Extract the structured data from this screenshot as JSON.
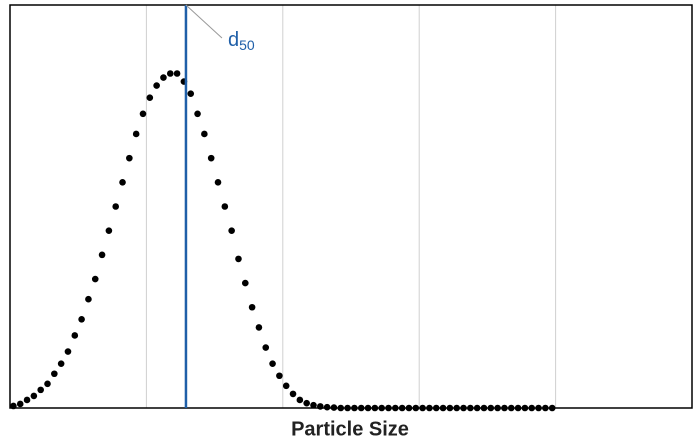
{
  "chart_data": {
    "type": "scatter",
    "x_label": "Particle Size",
    "xlim": [
      0,
      5
    ],
    "ylim": [
      0,
      1
    ],
    "xticks": [
      1,
      2,
      3,
      4
    ],
    "grid": true,
    "color": "#000000",
    "x": [
      0.025,
      0.075,
      0.125,
      0.175,
      0.225,
      0.275,
      0.325,
      0.375,
      0.425,
      0.475,
      0.525,
      0.575,
      0.625,
      0.675,
      0.725,
      0.775,
      0.825,
      0.875,
      0.925,
      0.975,
      1.025,
      1.075,
      1.125,
      1.175,
      1.225,
      1.275,
      1.325,
      1.375,
      1.425,
      1.475,
      1.525,
      1.575,
      1.625,
      1.675,
      1.725,
      1.775,
      1.825,
      1.875,
      1.925,
      1.975,
      2.025,
      2.075,
      2.125,
      2.175,
      2.225,
      2.275,
      2.325,
      2.375,
      2.425,
      2.475,
      2.525,
      2.575,
      2.625,
      2.675,
      2.725,
      2.775,
      2.825,
      2.875,
      2.925,
      2.975,
      3.025,
      3.075,
      3.125,
      3.175,
      3.225,
      3.275,
      3.325,
      3.375,
      3.425,
      3.475,
      3.525,
      3.575,
      3.625,
      3.675,
      3.725,
      3.775,
      3.825,
      3.875,
      3.925,
      3.975
    ],
    "values": [
      0.005,
      0.01,
      0.02,
      0.03,
      0.045,
      0.06,
      0.085,
      0.11,
      0.14,
      0.18,
      0.22,
      0.27,
      0.32,
      0.38,
      0.44,
      0.5,
      0.56,
      0.62,
      0.68,
      0.73,
      0.77,
      0.8,
      0.82,
      0.83,
      0.83,
      0.81,
      0.78,
      0.73,
      0.68,
      0.62,
      0.56,
      0.5,
      0.44,
      0.37,
      0.31,
      0.25,
      0.2,
      0.15,
      0.11,
      0.08,
      0.055,
      0.035,
      0.02,
      0.012,
      0.007,
      0.004,
      0.002,
      0.001,
      0,
      0,
      0,
      0,
      0,
      0,
      0,
      0,
      0,
      0,
      0,
      0,
      0,
      0,
      0,
      0,
      0,
      0,
      0,
      0,
      0,
      0,
      0,
      0,
      0,
      0,
      0,
      0,
      0,
      0,
      0,
      0
    ],
    "marker": {
      "x": 1.29,
      "text": "d",
      "subscript": "50",
      "color": "#1f5fa8"
    }
  }
}
